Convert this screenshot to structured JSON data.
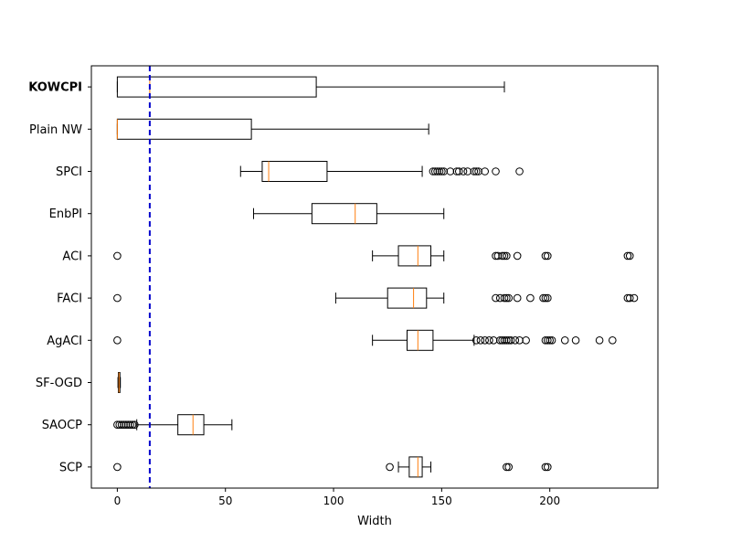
{
  "chart_data": {
    "type": "boxplot",
    "orientation": "horizontal",
    "xlabel": "Width",
    "xlim": [
      -12,
      250
    ],
    "xticks": [
      0,
      50,
      100,
      150,
      200
    ],
    "reference_line": {
      "value": 15,
      "color": "#0000cc",
      "style": "dashed"
    },
    "colors": {
      "box": "#000000",
      "median": "#ff7f0e",
      "outlier": "#000000"
    },
    "categories": [
      {
        "label": "KOWCPI",
        "bold": true,
        "whisker_low": 0,
        "q1": 0,
        "median": 15,
        "q3": 92,
        "whisker_high": 179,
        "outliers": []
      },
      {
        "label": "Plain NW",
        "bold": false,
        "whisker_low": 0,
        "q1": 0,
        "median": 0,
        "q3": 62,
        "whisker_high": 144,
        "outliers": []
      },
      {
        "label": "SPCI",
        "bold": false,
        "whisker_low": 57,
        "q1": 67,
        "median": 70,
        "q3": 97,
        "whisker_high": 141,
        "outliers": [
          146,
          147,
          148,
          149,
          150,
          151,
          154,
          157,
          158,
          160,
          162,
          165,
          166,
          167,
          170,
          175,
          186
        ]
      },
      {
        "label": "EnbPI",
        "bold": false,
        "whisker_low": 63,
        "q1": 90,
        "median": 110,
        "q3": 120,
        "whisker_high": 151,
        "outliers": []
      },
      {
        "label": "ACI",
        "bold": false,
        "whisker_low": 118,
        "q1": 130,
        "median": 139,
        "q3": 145,
        "whisker_high": 151,
        "outliers": [
          0,
          175,
          176,
          178,
          179,
          180,
          185,
          198,
          199,
          236,
          237
        ]
      },
      {
        "label": "FACI",
        "bold": false,
        "whisker_low": 101,
        "q1": 125,
        "median": 137,
        "q3": 143,
        "whisker_high": 151,
        "outliers": [
          0,
          175,
          177,
          179,
          180,
          181,
          185,
          191,
          197,
          198,
          199,
          236,
          237,
          239
        ]
      },
      {
        "label": "AgACI",
        "bold": false,
        "whisker_low": 118,
        "q1": 134,
        "median": 139,
        "q3": 146,
        "whisker_high": 165,
        "outliers": [
          0,
          166,
          168,
          170,
          172,
          174,
          177,
          178,
          179,
          180,
          181,
          182,
          184,
          186,
          189,
          198,
          199,
          200,
          201,
          207,
          212,
          223,
          229
        ]
      },
      {
        "label": "SF-OGD",
        "bold": false,
        "whisker_low": 0.3,
        "q1": 0.5,
        "median": 0.8,
        "q3": 1.2,
        "whisker_high": 1.4,
        "outliers": []
      },
      {
        "label": "SAOCP",
        "bold": false,
        "whisker_low": 9,
        "q1": 28,
        "median": 35,
        "q3": 40,
        "whisker_high": 53,
        "outliers": [
          0,
          1,
          2,
          3,
          4,
          5,
          6,
          7,
          8
        ]
      },
      {
        "label": "SCP",
        "bold": false,
        "whisker_low": 130,
        "q1": 135,
        "median": 139,
        "q3": 141,
        "whisker_high": 145,
        "outliers": [
          0,
          126,
          180,
          181,
          198,
          199
        ]
      }
    ]
  }
}
